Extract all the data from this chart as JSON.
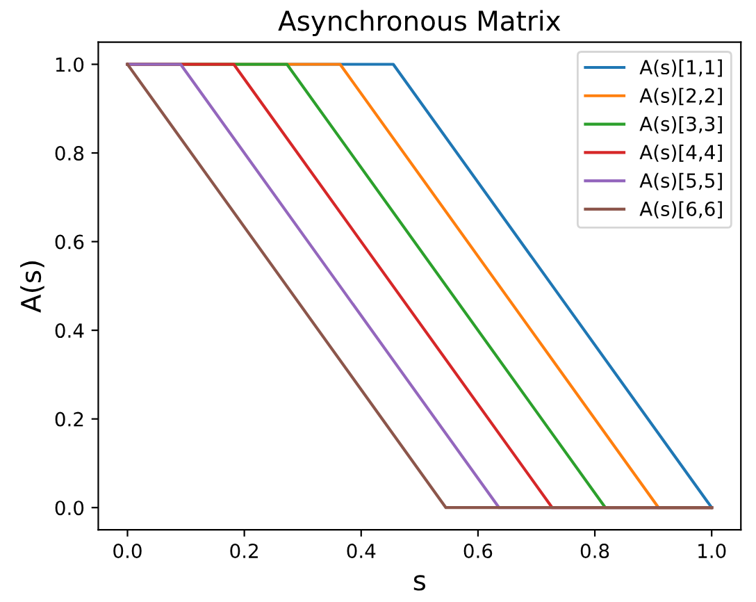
{
  "chart_data": {
    "type": "line",
    "title": "Asynchronous Matrix",
    "xlabel": "s",
    "ylabel": "A(s)",
    "series": [
      {
        "name": "A(s)[1,1]",
        "color": "#1f77b4",
        "x": [
          0,
          0.455,
          1.0
        ],
        "values": [
          1,
          1,
          0
        ]
      },
      {
        "name": "A(s)[2,2]",
        "color": "#ff7f0e",
        "x": [
          0,
          0.364,
          0.909,
          1.0
        ],
        "values": [
          1,
          1,
          0,
          0
        ]
      },
      {
        "name": "A(s)[3,3]",
        "color": "#2ca02c",
        "x": [
          0,
          0.273,
          0.818,
          1.0
        ],
        "values": [
          1,
          1,
          0,
          0
        ]
      },
      {
        "name": "A(s)[4,4]",
        "color": "#d62728",
        "x": [
          0,
          0.182,
          0.727,
          1.0
        ],
        "values": [
          1,
          1,
          0,
          0
        ]
      },
      {
        "name": "A(s)[5,5]",
        "color": "#9467bd",
        "x": [
          0,
          0.091,
          0.636,
          1.0
        ],
        "values": [
          1,
          1,
          0,
          0
        ]
      },
      {
        "name": "A(s)[6,6]",
        "color": "#8c564b",
        "x": [
          0,
          0.545,
          1.0
        ],
        "values": [
          1,
          0,
          0
        ]
      }
    ],
    "xlim": [
      -0.05,
      1.05
    ],
    "ylim": [
      -0.05,
      1.05
    ],
    "xticks": [
      {
        "value": 0,
        "label": "0.0"
      },
      0.2,
      0.4,
      0.6,
      0.8,
      {
        "value": 1,
        "label": "1.0"
      }
    ],
    "yticks": [
      {
        "value": 0,
        "label": "0.0"
      },
      0.2,
      0.4,
      0.6,
      0.8,
      {
        "value": 1,
        "label": "1.0"
      }
    ],
    "grid": false,
    "legend": "top right",
    "marker": "none",
    "line_style": "solid"
  }
}
